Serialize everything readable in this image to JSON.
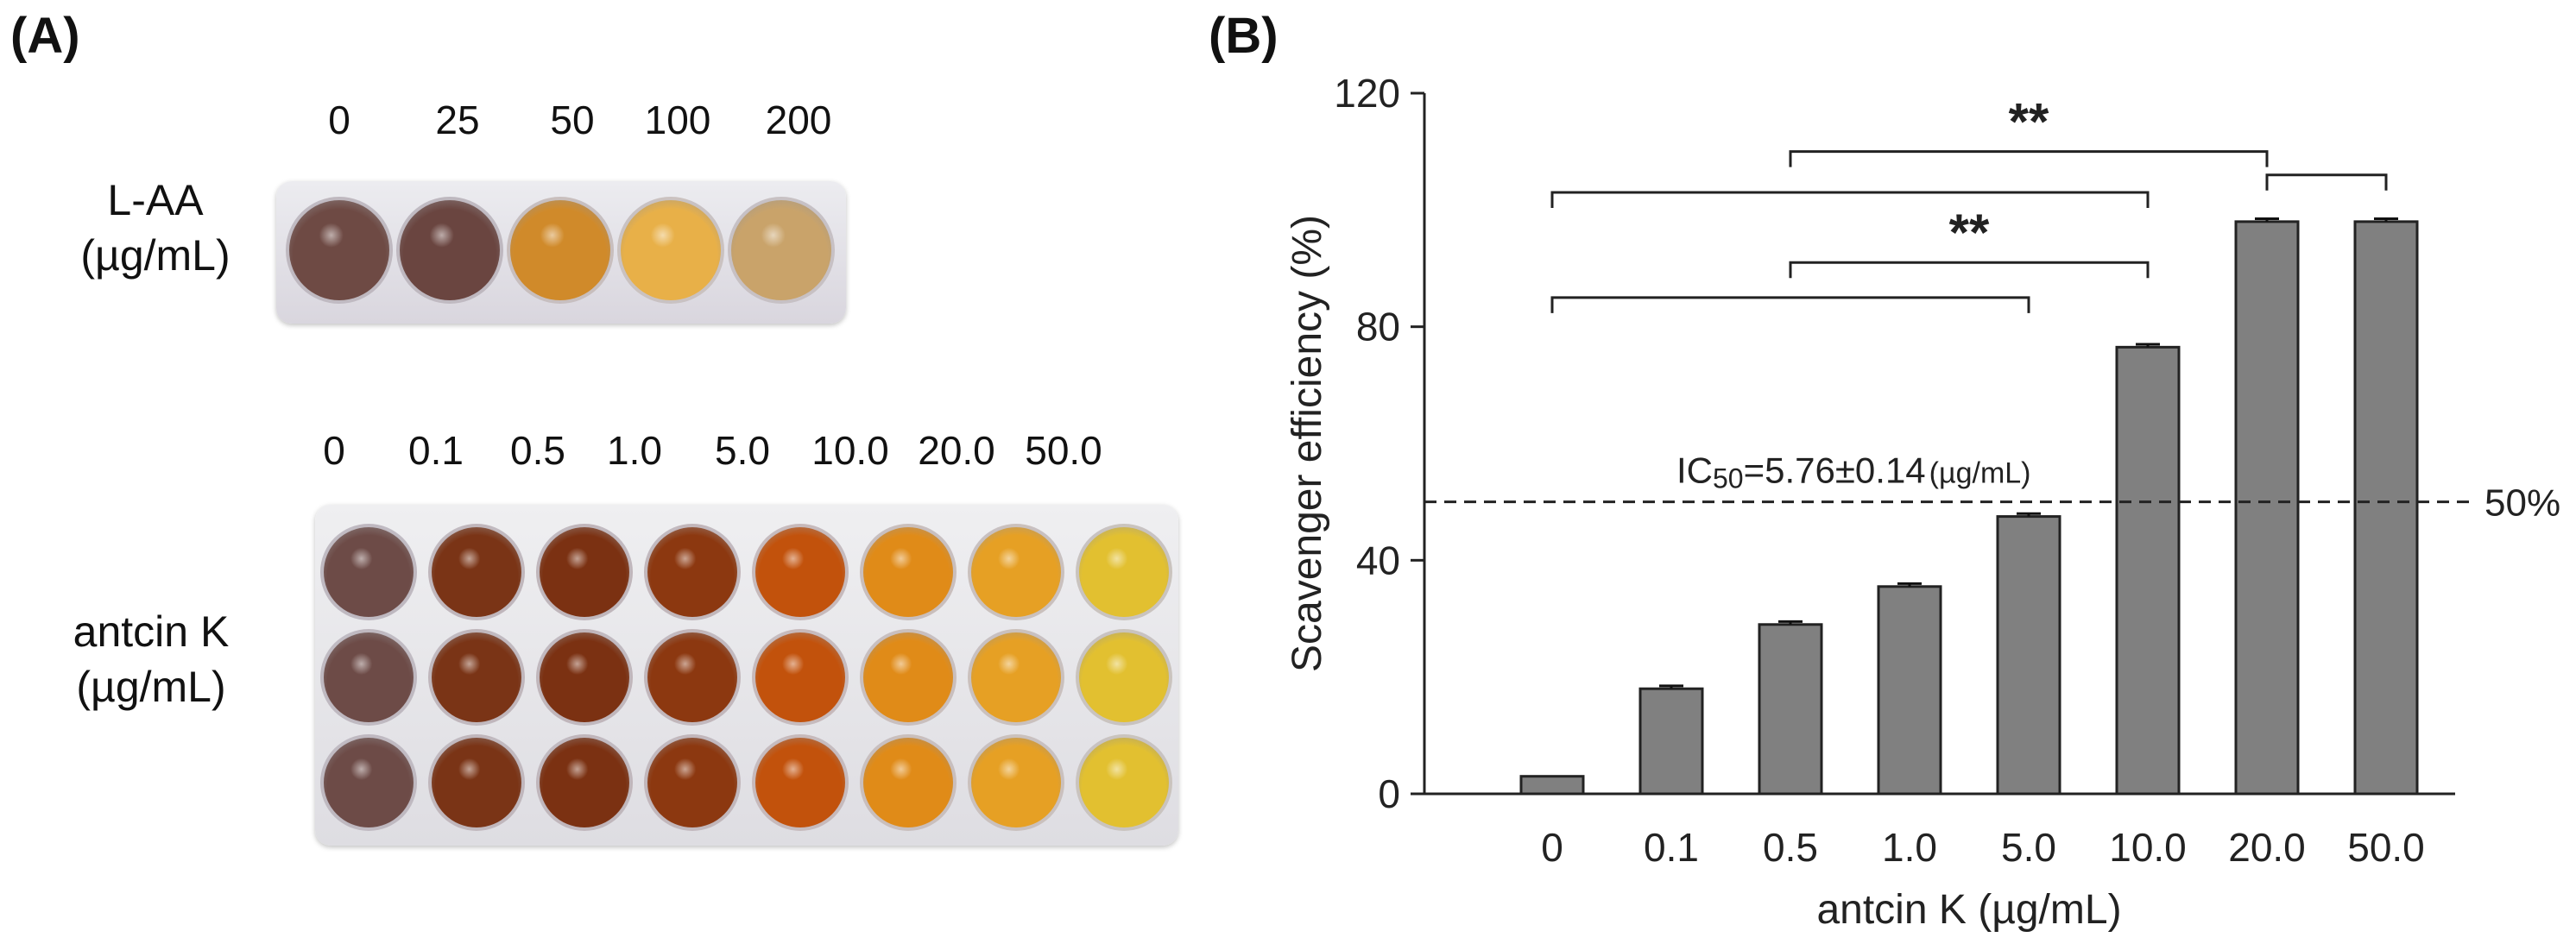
{
  "panel_a": {
    "label": "(A)",
    "laa": {
      "row_label_line1": "L-AA",
      "row_label_line2": "(µg/mL)",
      "concentrations": [
        "0",
        "25",
        "50",
        "100",
        "200"
      ],
      "well_colors": [
        "#6e4a44",
        "#6a4540",
        "#d08a2a",
        "#e8b048",
        "#c9a36a"
      ]
    },
    "antcin": {
      "row_label_line1": "antcin K",
      "row_label_line2": "(µg/mL)",
      "concentrations": [
        "0",
        "0.1",
        "0.5",
        "1.0",
        "5.0",
        "10.0",
        "20.0",
        "50.0"
      ],
      "well_colors": [
        "#6d4b47",
        "#7a3416",
        "#7b3112",
        "#8c3810",
        "#c2520c",
        "#e08b18",
        "#e6a024",
        "#e2c030"
      ]
    }
  },
  "panel_b": {
    "label": "(B)",
    "reference_label": "50%",
    "ic50": {
      "prefix": "IC",
      "subscript": "50",
      "value_text": "=5.76±0.14",
      "unit": "(µg/mL)"
    }
  },
  "chart_data": {
    "type": "bar",
    "categories": [
      "0",
      "0.1",
      "0.5",
      "1.0",
      "5.0",
      "10.0",
      "20.0",
      "50.0"
    ],
    "values": [
      3,
      18,
      29,
      35.5,
      47.5,
      76.5,
      98,
      98
    ],
    "errors": [
      0,
      0.5,
      0.5,
      0.5,
      0.5,
      0.5,
      0.5,
      0.5
    ],
    "ylim": [
      0,
      120
    ],
    "yticks": [
      0,
      40,
      80,
      120
    ],
    "xlabel": "antcin K (µg/mL)",
    "ylabel": "Scavenger efficiency (%)",
    "reference_line": 50,
    "bar_color": "#808080",
    "significance": [
      {
        "from": 0,
        "to": 4,
        "level": 85,
        "label": ""
      },
      {
        "from": 2,
        "to": 5,
        "level": 91,
        "label": "**"
      },
      {
        "from": 0,
        "to": 5,
        "level": 103,
        "label": ""
      },
      {
        "from": 2,
        "to": 6,
        "level": 110,
        "label": "**"
      },
      {
        "from": 6,
        "to": 7,
        "level": 106,
        "label": ""
      }
    ]
  }
}
